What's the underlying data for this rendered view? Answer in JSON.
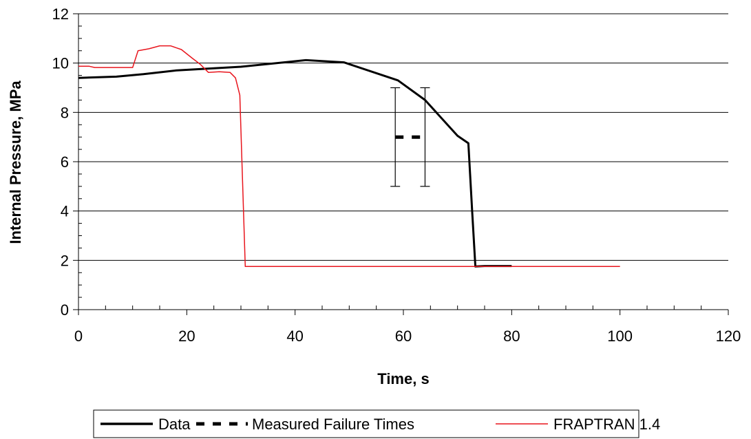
{
  "chart_data": {
    "type": "line",
    "xlabel": "Time, s",
    "ylabel": "Internal Pressure, MPa",
    "xlim": [
      0,
      120
    ],
    "ylim": [
      0,
      12
    ],
    "x_ticks": [
      0,
      20,
      40,
      60,
      80,
      100,
      120
    ],
    "y_ticks": [
      0,
      2,
      4,
      6,
      8,
      10,
      12
    ],
    "grid": "horizontal",
    "legend_position": "bottom",
    "series": [
      {
        "name": "Data",
        "style": "solid-thick",
        "color": "#000000",
        "points": [
          [
            0,
            9.4
          ],
          [
            7,
            9.45
          ],
          [
            12,
            9.55
          ],
          [
            18,
            9.7
          ],
          [
            30,
            9.85
          ],
          [
            42,
            10.12
          ],
          [
            49,
            10.03
          ],
          [
            59,
            9.3
          ],
          [
            64,
            8.5
          ],
          [
            70,
            7.05
          ],
          [
            72,
            6.75
          ],
          [
            72.7,
            4.0
          ],
          [
            73.3,
            1.75
          ],
          [
            75,
            1.77
          ],
          [
            80,
            1.77
          ]
        ]
      },
      {
        "name": "Measured Failure Times",
        "style": "dashed-thick",
        "color": "#000000",
        "points": [
          [
            58.5,
            7.0
          ],
          [
            64,
            7.0
          ]
        ],
        "error_bars": [
          {
            "x": 58.5,
            "y": 7.0,
            "low": 5.0,
            "high": 9.0
          },
          {
            "x": 64,
            "y": 7.0,
            "low": 5.0,
            "high": 9.0
          }
        ]
      },
      {
        "name": "FRAPTRAN 1.4",
        "style": "solid-thin",
        "color": "#e8141c",
        "points": [
          [
            0,
            9.87
          ],
          [
            2,
            9.87
          ],
          [
            3,
            9.82
          ],
          [
            10,
            9.82
          ],
          [
            11,
            10.5
          ],
          [
            13,
            10.58
          ],
          [
            15,
            10.7
          ],
          [
            17,
            10.7
          ],
          [
            19,
            10.55
          ],
          [
            21,
            10.2
          ],
          [
            22.5,
            9.95
          ],
          [
            24,
            9.62
          ],
          [
            26,
            9.65
          ],
          [
            28,
            9.62
          ],
          [
            29,
            9.4
          ],
          [
            29.8,
            8.7
          ],
          [
            30.8,
            1.75
          ],
          [
            100,
            1.75
          ]
        ]
      }
    ]
  }
}
